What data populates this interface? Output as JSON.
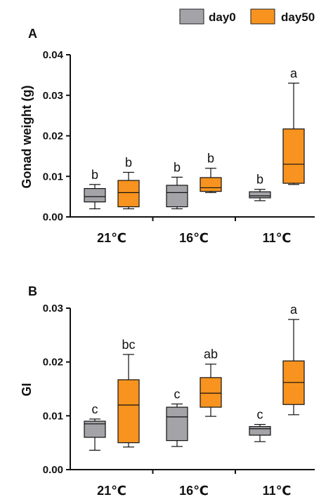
{
  "legend": {
    "items": [
      {
        "label": "day0",
        "color": "#A3A3A8"
      },
      {
        "label": "day50",
        "color": "#F7931E"
      }
    ],
    "placement": "top-right"
  },
  "chart_data": [
    {
      "panel_label": "A",
      "type": "box",
      "ylabel": "Gonad weight (g)",
      "ylim": [
        0,
        0.04
      ],
      "yticks": [
        "0.00",
        "0.01",
        "0.02",
        "0.03",
        "0.04"
      ],
      "ytick_values": [
        0,
        0.01,
        0.02,
        0.03,
        0.04
      ],
      "categories": [
        "21℃",
        "16℃",
        "11℃"
      ],
      "series": [
        {
          "name": "day0",
          "color": "#A3A3A8",
          "boxes": [
            {
              "min": 0.002,
              "q1": 0.0037,
              "median": 0.005,
              "q3": 0.007,
              "max": 0.008,
              "letter": "b"
            },
            {
              "min": 0.002,
              "q1": 0.0025,
              "median": 0.006,
              "q3": 0.0078,
              "max": 0.0098,
              "letter": "b"
            },
            {
              "min": 0.004,
              "q1": 0.0047,
              "median": 0.0052,
              "q3": 0.0062,
              "max": 0.0068,
              "letter": "b"
            }
          ]
        },
        {
          "name": "day50",
          "color": "#F7931E",
          "boxes": [
            {
              "min": 0.002,
              "q1": 0.0025,
              "median": 0.006,
              "q3": 0.009,
              "max": 0.011,
              "letter": "b"
            },
            {
              "min": 0.006,
              "q1": 0.0063,
              "median": 0.0072,
              "q3": 0.0097,
              "max": 0.012,
              "letter": "b"
            },
            {
              "min": 0.008,
              "q1": 0.0083,
              "median": 0.013,
              "q3": 0.0217,
              "max": 0.033,
              "letter": "a"
            }
          ]
        }
      ]
    },
    {
      "panel_label": "B",
      "type": "box",
      "ylabel": "GI",
      "ylim": [
        0,
        0.03
      ],
      "yticks": [
        "0.00",
        "0.01",
        "0.02",
        "0.03"
      ],
      "ytick_values": [
        0,
        0.01,
        0.02,
        0.03
      ],
      "categories": [
        "21℃",
        "16℃",
        "11℃"
      ],
      "series": [
        {
          "name": "day0",
          "color": "#A3A3A8",
          "boxes": [
            {
              "min": 0.0036,
              "q1": 0.006,
              "median": 0.0085,
              "q3": 0.009,
              "max": 0.0094,
              "letter": "c"
            },
            {
              "min": 0.0043,
              "q1": 0.0054,
              "median": 0.0098,
              "q3": 0.0116,
              "max": 0.0122,
              "letter": "c"
            },
            {
              "min": 0.0052,
              "q1": 0.0064,
              "median": 0.0076,
              "q3": 0.008,
              "max": 0.0084,
              "letter": "c"
            }
          ]
        },
        {
          "name": "day50",
          "color": "#F7931E",
          "boxes": [
            {
              "min": 0.0042,
              "q1": 0.005,
              "median": 0.012,
              "q3": 0.0167,
              "max": 0.0214,
              "letter": "bc"
            },
            {
              "min": 0.0099,
              "q1": 0.0116,
              "median": 0.0142,
              "q3": 0.0171,
              "max": 0.0196,
              "letter": "ab"
            },
            {
              "min": 0.0102,
              "q1": 0.0121,
              "median": 0.0162,
              "q3": 0.0202,
              "max": 0.0279,
              "letter": "a"
            }
          ]
        }
      ]
    }
  ]
}
